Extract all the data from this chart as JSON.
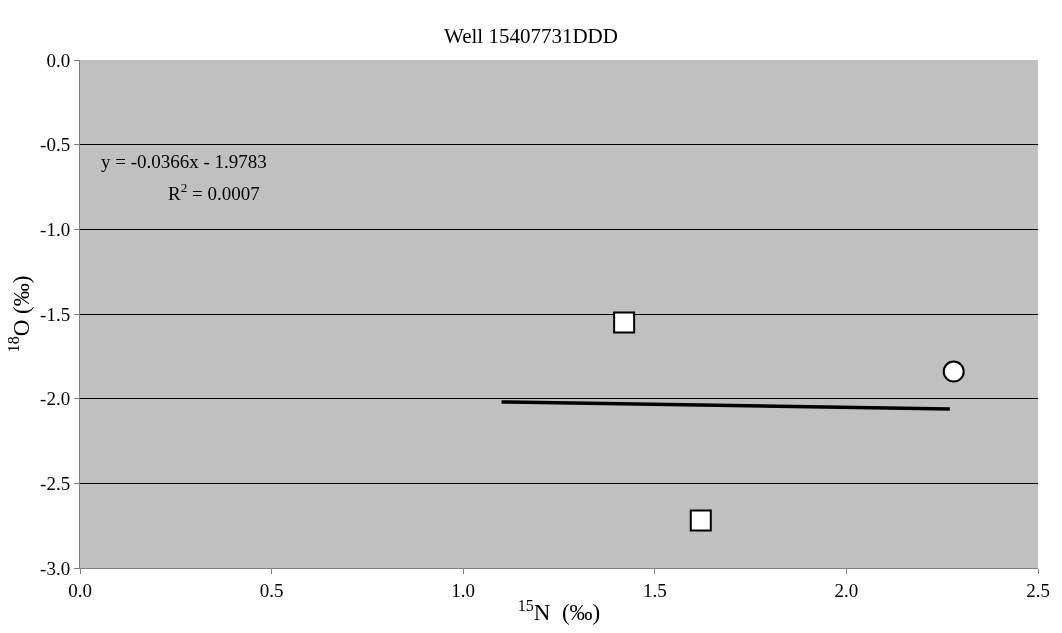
{
  "chart_data": {
    "type": "scatter",
    "title": "Well 15407731DDD",
    "xlabel": "$^{15}$N  (‰)",
    "ylabel": "$^{18}$O (‰)",
    "annotations": [
      "y = -0.0366x - 1.9783",
      "R$^{2}$ = 0.0007"
    ],
    "series": [
      {
        "marker": "square",
        "color": "#ffffff",
        "x": [
          1.42,
          1.62
        ],
        "values": [
          -1.55,
          -2.72
        ]
      },
      {
        "marker": "circle",
        "color": "#ffffff",
        "x": [
          2.28
        ],
        "values": [
          -1.84
        ]
      },
      {
        "type": "line",
        "marker": "none",
        "color": "#000000",
        "x": [
          1.1,
          2.27
        ],
        "values": [
          -2.019,
          -2.061
        ]
      }
    ],
    "xlim": [
      0,
      2.5
    ],
    "xticks": [
      {
        "value": 0,
        "label": "0.0"
      },
      0.5,
      {
        "value": 1,
        "label": "1.0"
      },
      1.5,
      {
        "value": 2,
        "label": "2.0"
      },
      2.5
    ],
    "ylim": [
      -3,
      0
    ],
    "yticks": [
      {
        "value": -3,
        "label": "-3.0"
      },
      -2.5,
      {
        "value": -2,
        "label": "-2.0"
      },
      -1.5,
      {
        "value": -1,
        "label": "-1.0"
      },
      -0.5,
      {
        "value": 0,
        "label": "0.0"
      }
    ],
    "grid": "y",
    "legend": false
  }
}
